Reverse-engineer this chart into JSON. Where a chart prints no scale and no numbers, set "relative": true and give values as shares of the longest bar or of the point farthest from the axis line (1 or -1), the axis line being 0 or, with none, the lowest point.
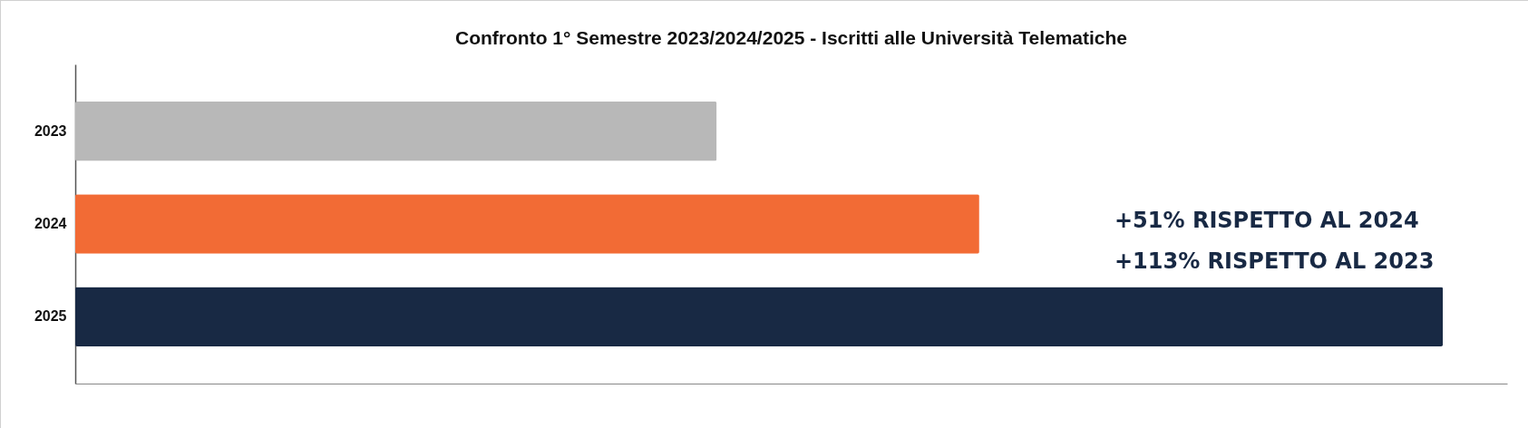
{
  "chart_data": {
    "type": "bar",
    "orientation": "horizontal",
    "relative": true,
    "title": "Confronto 1° Semestre 2023/2024/2025 - Iscritti alle Università Telematiche",
    "categories": [
      "2023",
      "2024",
      "2025"
    ],
    "values": [
      0.469,
      0.661,
      1
    ],
    "colors": [
      "#b8b8b8",
      "#f26b35",
      "#182944"
    ],
    "annotations": [
      "+51% RISPETTO AL 2024",
      "+113% RISPETTO AL 2023"
    ]
  }
}
